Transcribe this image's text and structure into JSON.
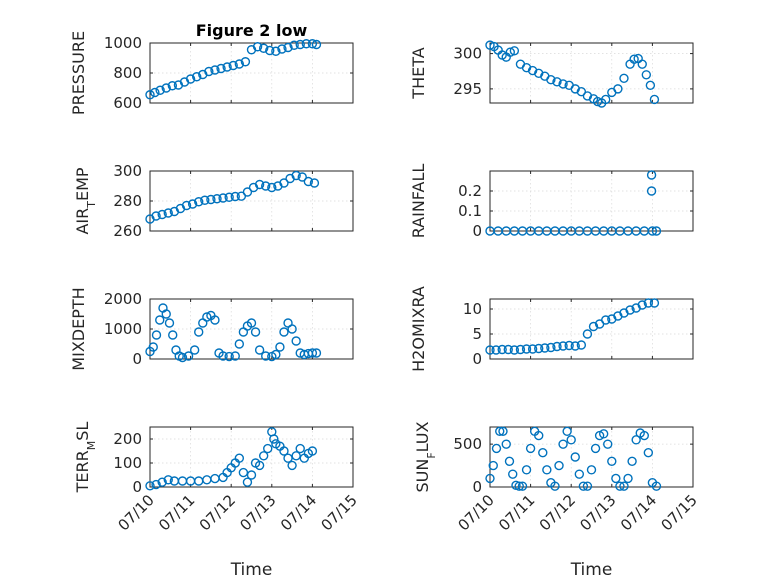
{
  "colors": {
    "series": "#0072bd",
    "axis": "#262626",
    "grid": "#d9d9d9"
  },
  "x_ticks": [
    "07/10",
    "07/11",
    "07/12",
    "07/13",
    "07/14",
    "07/15"
  ],
  "x_axis_label": "Time",
  "chart_data": [
    {
      "type": "scatter",
      "title": "Figure 2 low",
      "ylabel": "PRESSURE",
      "ylabel_sub": "",
      "ylim": [
        600,
        1000
      ],
      "yticks": [
        600,
        800,
        1000
      ],
      "grid": true,
      "x": [
        0,
        0.12,
        0.25,
        0.4,
        0.55,
        0.7,
        0.85,
        1.0,
        1.15,
        1.3,
        1.45,
        1.6,
        1.75,
        1.9,
        2.05,
        2.2,
        2.35,
        2.5,
        2.65,
        2.8,
        2.95,
        3.1,
        3.25,
        3.4,
        3.55,
        3.7,
        3.85,
        4.0,
        4.1
      ],
      "y": [
        655,
        670,
        685,
        700,
        715,
        720,
        740,
        760,
        775,
        790,
        810,
        820,
        830,
        840,
        850,
        860,
        875,
        955,
        975,
        965,
        950,
        945,
        960,
        970,
        985,
        990,
        995,
        995,
        990
      ]
    },
    {
      "type": "scatter",
      "title": "",
      "ylabel": "THETA",
      "ylabel_sub": "",
      "ylim": [
        293,
        301.5
      ],
      "yticks": [
        295,
        300
      ],
      "grid": true,
      "x": [
        0,
        0.1,
        0.2,
        0.3,
        0.4,
        0.5,
        0.6,
        0.75,
        0.9,
        1.05,
        1.2,
        1.35,
        1.5,
        1.65,
        1.8,
        1.95,
        2.1,
        2.25,
        2.4,
        2.55,
        2.65,
        2.75,
        2.85,
        3.0,
        3.15,
        3.3,
        3.45,
        3.55,
        3.65,
        3.75,
        3.85,
        3.95,
        4.05
      ],
      "y": [
        301.2,
        301,
        300.5,
        299.8,
        299.5,
        300.2,
        300.4,
        298.5,
        298.0,
        297.6,
        297.2,
        296.8,
        296.3,
        296.0,
        295.7,
        295.5,
        295.0,
        294.6,
        294.0,
        293.6,
        293.2,
        293.0,
        293.5,
        294.5,
        295.0,
        296.5,
        298.5,
        299.2,
        299.3,
        298.5,
        297.0,
        295.5,
        293.5
      ]
    },
    {
      "type": "scatter",
      "title": "",
      "ylabel": "AIR",
      "ylabel_sub": "T",
      "ylabel_suffix": "EMP",
      "ylim": [
        260,
        300
      ],
      "yticks": [
        260,
        280,
        300
      ],
      "grid": true,
      "x": [
        0,
        0.15,
        0.3,
        0.45,
        0.6,
        0.75,
        0.9,
        1.05,
        1.2,
        1.35,
        1.5,
        1.65,
        1.8,
        1.95,
        2.1,
        2.25,
        2.4,
        2.55,
        2.7,
        2.85,
        3.0,
        3.15,
        3.3,
        3.45,
        3.6,
        3.75,
        3.9,
        4.05
      ],
      "y": [
        268,
        270,
        271,
        272,
        273,
        275,
        277,
        278,
        279.5,
        280.5,
        281,
        281.5,
        282,
        282.5,
        283,
        283.2,
        286,
        289,
        291,
        290,
        289,
        290,
        292,
        295,
        297,
        296,
        293,
        292
      ]
    },
    {
      "type": "scatter",
      "title": "",
      "ylabel": "RAINFALL",
      "ylabel_sub": "",
      "ylim": [
        0,
        0.3
      ],
      "yticks": [
        0,
        0.1,
        0.2
      ],
      "grid": true,
      "x": [
        0,
        0.2,
        0.4,
        0.6,
        0.8,
        1.0,
        1.2,
        1.4,
        1.6,
        1.8,
        2.0,
        2.2,
        2.4,
        2.6,
        2.8,
        3.0,
        3.2,
        3.4,
        3.6,
        3.8,
        3.98,
        3.98,
        4.0,
        4.1
      ],
      "y": [
        0,
        0,
        0,
        0,
        0,
        0,
        0,
        0,
        0,
        0,
        0,
        0,
        0,
        0,
        0,
        0,
        0,
        0,
        0,
        0,
        0.28,
        0.2,
        0,
        0
      ]
    },
    {
      "type": "scatter",
      "title": "",
      "ylabel": "MIXDEPTH",
      "ylabel_sub": "",
      "ylim": [
        0,
        2000
      ],
      "yticks": [
        0,
        1000,
        2000
      ],
      "grid": true,
      "x": [
        0,
        0.08,
        0.16,
        0.24,
        0.32,
        0.4,
        0.48,
        0.56,
        0.64,
        0.72,
        0.8,
        0.95,
        1.1,
        1.2,
        1.3,
        1.4,
        1.5,
        1.6,
        1.7,
        1.8,
        1.95,
        2.1,
        2.2,
        2.3,
        2.4,
        2.5,
        2.6,
        2.7,
        2.85,
        3.0,
        3.1,
        3.2,
        3.3,
        3.4,
        3.5,
        3.6,
        3.7,
        3.8,
        3.9,
        4.0,
        4.1
      ],
      "y": [
        250,
        400,
        800,
        1300,
        1700,
        1500,
        1200,
        800,
        300,
        100,
        50,
        100,
        300,
        900,
        1200,
        1400,
        1450,
        1300,
        200,
        100,
        80,
        100,
        500,
        900,
        1100,
        1200,
        900,
        300,
        100,
        80,
        150,
        400,
        900,
        1200,
        1000,
        600,
        200,
        150,
        180,
        200,
        200
      ]
    },
    {
      "type": "scatter",
      "title": "",
      "ylabel": "H2OMIXRA",
      "ylabel_sub": "",
      "ylim": [
        0,
        12
      ],
      "yticks": [
        0,
        5,
        10
      ],
      "grid": true,
      "x": [
        0,
        0.15,
        0.3,
        0.45,
        0.6,
        0.75,
        0.9,
        1.05,
        1.2,
        1.35,
        1.5,
        1.65,
        1.8,
        1.95,
        2.1,
        2.25,
        2.4,
        2.55,
        2.7,
        2.85,
        3.0,
        3.15,
        3.3,
        3.45,
        3.6,
        3.75,
        3.9,
        4.05
      ],
      "y": [
        1.8,
        1.8,
        1.9,
        1.9,
        1.8,
        1.9,
        2.0,
        2.0,
        2.1,
        2.2,
        2.3,
        2.5,
        2.6,
        2.7,
        2.6,
        2.8,
        5.0,
        6.5,
        7.0,
        7.8,
        8.0,
        8.6,
        9.2,
        9.8,
        10.2,
        10.8,
        11.2,
        11.2
      ]
    },
    {
      "type": "scatter",
      "title": "",
      "ylabel": "TERR",
      "ylabel_sub": "M",
      "ylabel_suffix": "SL",
      "ylim": [
        0,
        250
      ],
      "yticks": [
        0,
        100,
        200
      ],
      "grid": true,
      "x": [
        0,
        0.15,
        0.3,
        0.45,
        0.6,
        0.8,
        1.0,
        1.2,
        1.4,
        1.6,
        1.8,
        1.9,
        2.0,
        2.1,
        2.2,
        2.3,
        2.4,
        2.5,
        2.6,
        2.7,
        2.8,
        2.9,
        3.0,
        3.05,
        3.1,
        3.2,
        3.3,
        3.4,
        3.5,
        3.6,
        3.7,
        3.8,
        3.9,
        4.0
      ],
      "y": [
        5,
        10,
        20,
        30,
        25,
        25,
        25,
        25,
        30,
        35,
        40,
        60,
        80,
        100,
        120,
        60,
        20,
        50,
        100,
        90,
        130,
        160,
        230,
        200,
        180,
        170,
        150,
        120,
        90,
        130,
        160,
        120,
        140,
        150
      ]
    },
    {
      "type": "scatter",
      "title": "",
      "ylabel": "SUN",
      "ylabel_sub": "F",
      "ylabel_suffix": "LUX",
      "ylim": [
        0,
        700
      ],
      "yticks": [
        0,
        500
      ],
      "grid": true,
      "x": [
        0,
        0.08,
        0.16,
        0.24,
        0.32,
        0.4,
        0.48,
        0.56,
        0.64,
        0.72,
        0.8,
        0.9,
        1.0,
        1.1,
        1.2,
        1.3,
        1.4,
        1.5,
        1.6,
        1.7,
        1.8,
        1.9,
        2.0,
        2.1,
        2.2,
        2.3,
        2.4,
        2.5,
        2.6,
        2.7,
        2.8,
        2.9,
        3.0,
        3.1,
        3.2,
        3.3,
        3.4,
        3.5,
        3.6,
        3.7,
        3.8,
        3.9,
        4.0,
        4.1
      ],
      "y": [
        100,
        250,
        450,
        650,
        650,
        500,
        300,
        150,
        20,
        10,
        10,
        200,
        450,
        650,
        600,
        400,
        200,
        50,
        10,
        250,
        500,
        650,
        550,
        350,
        150,
        10,
        10,
        200,
        450,
        600,
        620,
        500,
        300,
        100,
        10,
        10,
        100,
        300,
        550,
        630,
        600,
        400,
        50,
        10
      ]
    }
  ]
}
